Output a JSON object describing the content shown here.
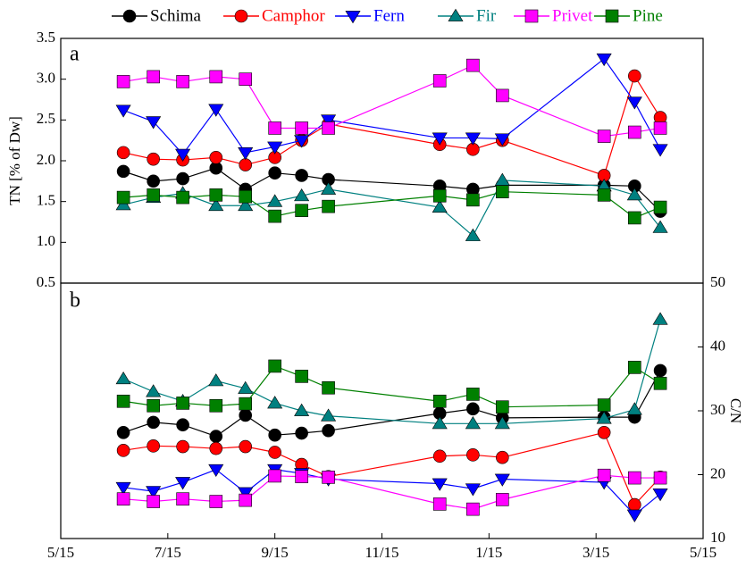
{
  "chart_data": [
    {
      "type": "line",
      "panel_label": "a",
      "ylabel": "TN [% of Dw]",
      "x": [
        1.17,
        1.73,
        2.28,
        2.9,
        3.45,
        4.0,
        4.5,
        5.0,
        7.08,
        7.7,
        8.25,
        10.15,
        10.72,
        11.2
      ],
      "xlim": [
        0,
        12
      ],
      "ylim": [
        0.5,
        3.5
      ],
      "yticks": [
        0.5,
        {
          "value": 1,
          "label": "1.0"
        },
        1.5,
        {
          "value": 2,
          "label": "2.0"
        },
        2.5,
        {
          "value": 3,
          "label": "3.0"
        },
        3.5
      ],
      "series": [
        {
          "name": "Schima",
          "color": "#000000",
          "marker": "circle",
          "values": [
            1.87,
            1.75,
            1.78,
            1.91,
            1.65,
            1.85,
            1.82,
            1.77,
            1.69,
            1.65,
            1.7,
            1.7,
            1.69,
            1.38
          ]
        },
        {
          "name": "Camphor",
          "color": "#ff0000",
          "marker": "circle",
          "values": [
            2.1,
            2.02,
            2.01,
            2.04,
            1.95,
            2.04,
            2.25,
            2.45,
            2.2,
            2.14,
            2.25,
            1.82,
            3.04,
            2.53
          ]
        },
        {
          "name": "Fern",
          "color": "#0000ff",
          "marker": "triangle-down",
          "values": [
            2.62,
            2.48,
            2.08,
            2.63,
            2.1,
            2.17,
            2.25,
            2.5,
            2.28,
            2.28,
            2.27,
            3.25,
            2.72,
            2.14
          ]
        },
        {
          "name": "Fir",
          "color": "#008080",
          "marker": "triangle-up",
          "values": [
            1.46,
            1.55,
            1.6,
            1.45,
            1.45,
            1.5,
            1.57,
            1.65,
            1.43,
            1.08,
            1.76,
            1.69,
            1.58,
            1.18
          ]
        },
        {
          "name": "Privet",
          "color": "#ff00ff",
          "marker": "square",
          "values": [
            2.97,
            3.03,
            2.97,
            3.03,
            3.0,
            2.4,
            2.4,
            2.4,
            2.98,
            3.17,
            2.8,
            2.3,
            2.35,
            2.4
          ]
        },
        {
          "name": "Pine",
          "color": "#008000",
          "marker": "square",
          "values": [
            1.55,
            1.58,
            1.55,
            1.58,
            1.56,
            1.32,
            1.39,
            1.44,
            1.57,
            1.52,
            1.62,
            1.58,
            1.3,
            1.43
          ]
        }
      ]
    },
    {
      "type": "line",
      "panel_label": "b",
      "y2label": "C/N",
      "x": [
        1.17,
        1.73,
        2.28,
        2.9,
        3.45,
        4.0,
        4.5,
        5.0,
        7.08,
        7.7,
        8.25,
        10.15,
        10.72,
        11.2
      ],
      "xlim": [
        0,
        12
      ],
      "xticks": [
        {
          "value": 0,
          "label": "5/15"
        },
        {
          "value": 2,
          "label": "7/15"
        },
        {
          "value": 4,
          "label": "9/15"
        },
        {
          "value": 6,
          "label": "11/15"
        },
        {
          "value": 8,
          "label": "1/15"
        },
        {
          "value": 10,
          "label": "3/15"
        },
        {
          "value": 12,
          "label": "5/15"
        }
      ],
      "y2lim": [
        10,
        50
      ],
      "y2ticks": [
        10,
        20,
        30,
        40,
        50
      ],
      "series": [
        {
          "color": "#000000",
          "marker": "circle",
          "axis": "y2",
          "values": [
            26.6,
            28.2,
            27.8,
            26.0,
            29.3,
            26.2,
            26.5,
            26.9,
            29.6,
            30.3,
            28.9,
            29.0,
            29.0,
            36.3
          ]
        },
        {
          "color": "#ff0000",
          "marker": "circle",
          "axis": "y2",
          "values": [
            23.8,
            24.5,
            24.4,
            24.1,
            24.4,
            23.5,
            21.6,
            19.7,
            22.9,
            23.1,
            22.7,
            26.6,
            15.3,
            19.6
          ]
        },
        {
          "color": "#0000ff",
          "marker": "triangle-down",
          "axis": "y2",
          "values": [
            18.0,
            17.4,
            18.8,
            20.8,
            17.2,
            20.8,
            20.2,
            19.3,
            18.6,
            17.8,
            19.3,
            18.8,
            13.7,
            17.0
          ]
        },
        {
          "color": "#008080",
          "marker": "triangle-up",
          "axis": "y2",
          "values": [
            35.0,
            33.0,
            31.5,
            34.7,
            33.5,
            31.2,
            30.0,
            29.2,
            28.0,
            28.0,
            28.0,
            28.8,
            30.2,
            44.3
          ]
        },
        {
          "color": "#ff00ff",
          "marker": "square",
          "axis": "y2",
          "values": [
            16.2,
            15.8,
            16.2,
            15.8,
            16.0,
            19.8,
            19.7,
            19.6,
            15.4,
            14.6,
            16.1,
            19.9,
            19.5,
            19.5
          ]
        },
        {
          "color": "#008000",
          "marker": "square",
          "axis": "y2",
          "values": [
            31.5,
            30.8,
            31.2,
            30.8,
            31.1,
            37.0,
            35.4,
            33.6,
            31.5,
            32.6,
            30.6,
            30.9,
            36.8,
            34.3
          ]
        }
      ]
    }
  ]
}
